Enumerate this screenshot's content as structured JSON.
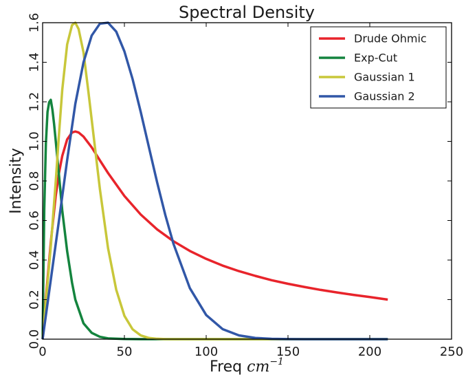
{
  "chart_data": {
    "type": "line",
    "title": "Spectral Density",
    "xlabel_text": "Freq",
    "xlabel_math": "cm",
    "xlabel_exp": "−1",
    "ylabel": "Intensity",
    "xlim": [
      0,
      250
    ],
    "ylim": [
      0,
      1.6
    ],
    "x_ticks": [
      0,
      50,
      100,
      150,
      200,
      250
    ],
    "x_tick_labels": [
      "0",
      "50",
      "100",
      "150",
      "200",
      "250"
    ],
    "y_ticks": [
      0.0,
      0.2,
      0.4,
      0.6,
      0.8,
      1.0,
      1.2,
      1.4,
      1.6
    ],
    "y_tick_labels": [
      "0.0",
      "0.2",
      "0.4",
      "0.6",
      "0.8",
      "1.0",
      "1.2",
      "1.4",
      "1.6"
    ],
    "grid": false,
    "legend_position": "top-right",
    "series": [
      {
        "name": "Drude Ohmic",
        "color": "#e8242b",
        "x": [
          0,
          2,
          5,
          8,
          10,
          12,
          15,
          18,
          20,
          22,
          25,
          30,
          35,
          40,
          50,
          60,
          70,
          80,
          90,
          100,
          110,
          120,
          130,
          140,
          150,
          160,
          170,
          180,
          190,
          200,
          211
        ],
        "y": [
          0,
          0.208,
          0.49,
          0.724,
          0.84,
          0.926,
          1.01,
          1.045,
          1.05,
          1.045,
          1.024,
          0.97,
          0.904,
          0.84,
          0.724,
          0.63,
          0.555,
          0.495,
          0.446,
          0.406,
          0.372,
          0.344,
          0.32,
          0.298,
          0.28,
          0.264,
          0.249,
          0.236,
          0.224,
          0.213,
          0.2
        ]
      },
      {
        "name": "Exp-Cut",
        "color": "#14843e",
        "x": [
          0,
          1,
          2,
          3,
          4,
          5,
          6,
          7,
          8,
          10,
          12,
          15,
          18,
          20,
          25,
          30,
          35,
          40,
          50,
          60,
          80,
          100,
          150,
          211
        ],
        "y": [
          0,
          0.654,
          0.989,
          1.149,
          1.198,
          1.21,
          1.16,
          1.089,
          1.004,
          0.83,
          0.651,
          0.445,
          0.285,
          0.2,
          0.08,
          0.032,
          0.012,
          0.004,
          0.001,
          0,
          0,
          0,
          0,
          0
        ]
      },
      {
        "name": "Gaussian 1",
        "color": "#c8c73a",
        "x": [
          0,
          2,
          5,
          8,
          10,
          12,
          15,
          18,
          20,
          22,
          25,
          28,
          30,
          35,
          40,
          45,
          50,
          55,
          60,
          65,
          70,
          75,
          80,
          90,
          100,
          150,
          211
        ],
        "y": [
          0,
          0.19,
          0.468,
          0.795,
          1.035,
          1.26,
          1.49,
          1.588,
          1.6,
          1.568,
          1.45,
          1.25,
          1.11,
          0.76,
          0.46,
          0.25,
          0.118,
          0.05,
          0.019,
          0.006,
          0.002,
          0.0005,
          0,
          0,
          0,
          0,
          0
        ]
      },
      {
        "name": "Gaussian 2",
        "color": "#3157a7",
        "x": [
          0,
          5,
          10,
          15,
          20,
          25,
          30,
          35,
          40,
          45,
          50,
          55,
          60,
          65,
          70,
          75,
          80,
          90,
          100,
          110,
          120,
          130,
          140,
          150,
          160,
          180,
          211
        ],
        "y": [
          0,
          0.3,
          0.6,
          0.905,
          1.19,
          1.4,
          1.535,
          1.595,
          1.6,
          1.555,
          1.455,
          1.315,
          1.148,
          0.97,
          0.793,
          0.628,
          0.482,
          0.258,
          0.122,
          0.051,
          0.019,
          0.006,
          0.0018,
          0.0005,
          0.0001,
          0,
          0
        ]
      }
    ]
  }
}
